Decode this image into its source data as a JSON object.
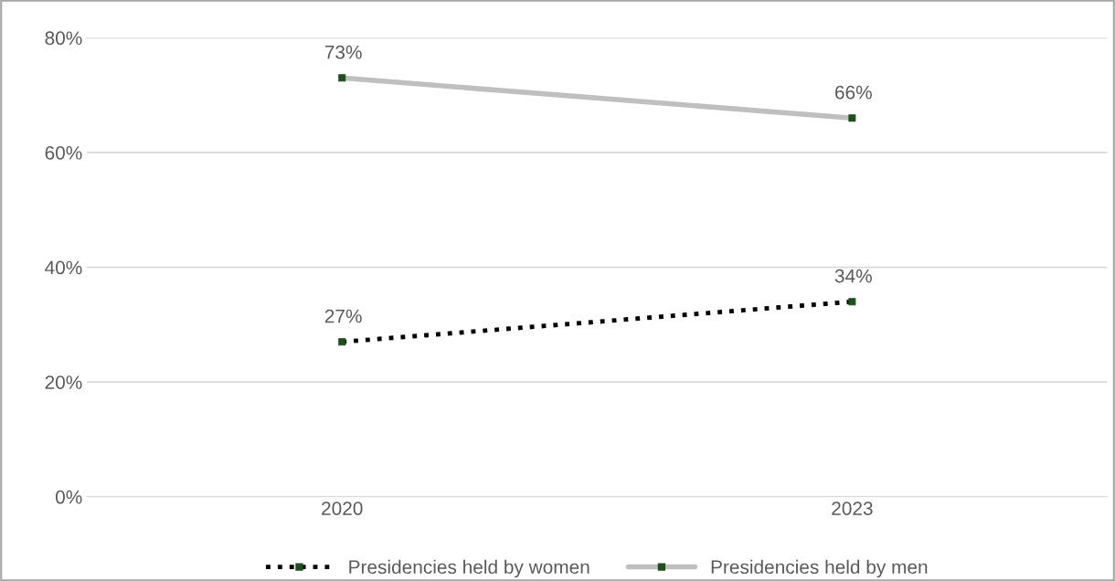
{
  "chart_data": {
    "type": "line",
    "categories": [
      "2020",
      "2023"
    ],
    "series": [
      {
        "name": "Presidencies held by women",
        "color": "#000000",
        "values": [
          27,
          34
        ],
        "value_labels": [
          "27%",
          "34%"
        ],
        "line_style": "dotted",
        "marker": "square"
      },
      {
        "name": "Presidencies held by men",
        "color": "#bfbfbf",
        "values": [
          73,
          66
        ],
        "value_labels": [
          "73%",
          "66%"
        ],
        "line_style": "solid",
        "marker": "square"
      }
    ],
    "ylim": [
      0,
      80
    ],
    "yticks": [
      {
        "value": 0,
        "label": "0%"
      },
      {
        "value": 20,
        "label": "20%"
      },
      {
        "value": 40,
        "label": "40%"
      },
      {
        "value": 60,
        "label": "60%"
      },
      {
        "value": 80,
        "label": "80%"
      }
    ],
    "grid": "y",
    "legend": "bottom"
  }
}
